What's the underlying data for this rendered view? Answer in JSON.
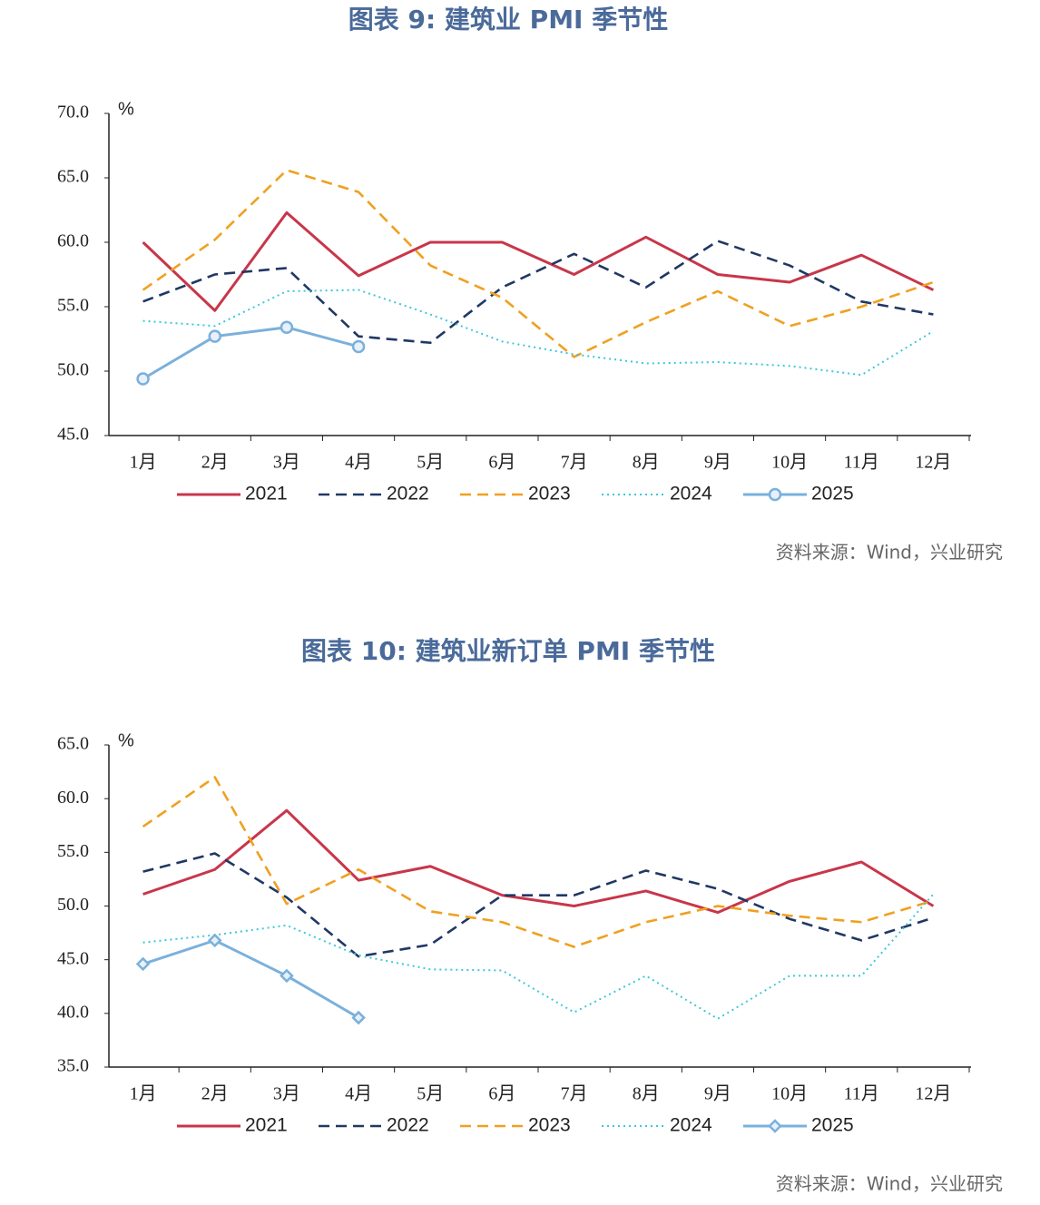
{
  "chart_data": [
    {
      "type": "line",
      "title": "图表 9:   建筑业 PMI 季节性",
      "ylabel": "%",
      "source": "资料来源：Wind，兴业研究",
      "categories": [
        "1月",
        "2月",
        "3月",
        "4月",
        "5月",
        "6月",
        "7月",
        "8月",
        "9月",
        "10月",
        "11月",
        "12月"
      ],
      "ylim": [
        45,
        70
      ],
      "yticks": [
        {
          "value": 45,
          "label": "45.0"
        },
        {
          "value": 50,
          "label": "50.0"
        },
        {
          "value": 55,
          "label": "55.0"
        },
        {
          "value": 60,
          "label": "60.0"
        },
        {
          "value": 65,
          "label": "65.0"
        },
        {
          "value": 70,
          "label": "70.0"
        }
      ],
      "series": [
        {
          "name": "2021",
          "color": "#c8364a",
          "dash": "solid",
          "values": [
            60.0,
            54.7,
            62.3,
            57.4,
            60.0,
            60.0,
            57.5,
            60.4,
            57.5,
            56.9,
            59.0,
            56.3
          ]
        },
        {
          "name": "2022",
          "color": "#1f3864",
          "dash": "dashed",
          "values": [
            55.4,
            57.5,
            58.0,
            52.7,
            52.2,
            56.5,
            59.1,
            56.5,
            60.1,
            58.2,
            55.4,
            54.4
          ]
        },
        {
          "name": "2023",
          "color": "#f0a020",
          "dash": "dashed",
          "values": [
            56.3,
            60.2,
            65.6,
            63.9,
            58.2,
            55.7,
            51.1,
            53.8,
            56.2,
            53.5,
            55.0,
            56.9
          ]
        },
        {
          "name": "2024",
          "color": "#3cc8d8",
          "dash": "dotted",
          "values": [
            53.9,
            53.5,
            56.2,
            56.3,
            54.4,
            52.3,
            51.3,
            50.6,
            50.7,
            50.4,
            49.7,
            53.1
          ]
        },
        {
          "name": "2025",
          "color": "#7ab0dc",
          "dash": "solid",
          "marker": "circle",
          "values": [
            49.4,
            52.7,
            53.4,
            51.9,
            null,
            null,
            null,
            null,
            null,
            null,
            null,
            null
          ]
        }
      ]
    },
    {
      "type": "line",
      "title": "图表 10: 建筑业新订单 PMI 季节性",
      "ylabel": "%",
      "source": "资料来源：Wind，兴业研究",
      "categories": [
        "1月",
        "2月",
        "3月",
        "4月",
        "5月",
        "6月",
        "7月",
        "8月",
        "9月",
        "10月",
        "11月",
        "12月"
      ],
      "ylim": [
        35,
        65
      ],
      "yticks": [
        {
          "value": 35,
          "label": "35.0"
        },
        {
          "value": 40,
          "label": "40.0"
        },
        {
          "value": 45,
          "label": "45.0"
        },
        {
          "value": 50,
          "label": "50.0"
        },
        {
          "value": 55,
          "label": "55.0"
        },
        {
          "value": 60,
          "label": "60.0"
        },
        {
          "value": 65,
          "label": "65.0"
        }
      ],
      "series": [
        {
          "name": "2021",
          "color": "#c8364a",
          "dash": "solid",
          "values": [
            51.1,
            53.4,
            58.9,
            52.4,
            53.7,
            51.0,
            50.0,
            51.4,
            49.4,
            52.3,
            54.1,
            50.0
          ]
        },
        {
          "name": "2022",
          "color": "#1f3864",
          "dash": "dashed",
          "values": [
            53.2,
            54.9,
            50.8,
            45.3,
            46.4,
            51.0,
            51.0,
            53.3,
            51.6,
            48.8,
            46.8,
            48.9
          ]
        },
        {
          "name": "2023",
          "color": "#f0a020",
          "dash": "dashed",
          "values": [
            57.4,
            62.0,
            50.2,
            53.4,
            49.5,
            48.5,
            46.2,
            48.5,
            50.0,
            49.1,
            48.5,
            50.5
          ]
        },
        {
          "name": "2024",
          "color": "#3cc8d8",
          "dash": "dotted",
          "values": [
            46.6,
            47.3,
            48.2,
            45.4,
            44.1,
            44.0,
            40.1,
            43.5,
            39.5,
            43.5,
            43.5,
            51.1
          ]
        },
        {
          "name": "2025",
          "color": "#7ab0dc",
          "dash": "solid",
          "marker": "diamond",
          "values": [
            44.6,
            46.8,
            43.5,
            39.6,
            null,
            null,
            null,
            null,
            null,
            null,
            null,
            null
          ]
        }
      ]
    }
  ]
}
